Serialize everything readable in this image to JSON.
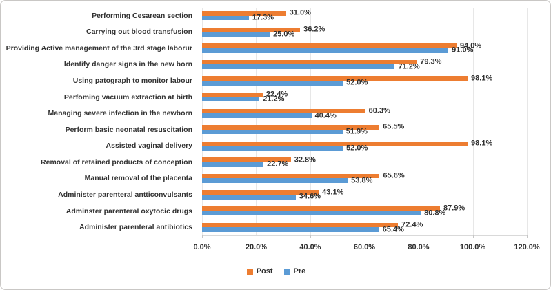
{
  "chart_data": {
    "type": "bar",
    "orientation": "horizontal",
    "title": "",
    "categories": [
      "Performing Cesarean section",
      "Carrying out blood transfusion",
      "Providing Active management of the 3rd stage laborur",
      "Identify danger signs in the new born",
      "Using patograph to monitor labour",
      "Perfoming vacuum extraction at birth",
      "Managing severe infection in the newborn",
      "Perform basic neonatal resuscitation",
      "Assisted vaginal delivery",
      "Removal of retained products of conception",
      "Manual removal of the placenta",
      "Administer parenteral antticonvulsants",
      "Adminster parenteral oxytocic drugs",
      "Administer parenteral antibiotics"
    ],
    "series": [
      {
        "name": "Post",
        "color": "#ED7D31",
        "values": [
          31.0,
          36.2,
          94.0,
          79.3,
          98.1,
          22.4,
          60.3,
          65.5,
          98.1,
          32.8,
          65.6,
          43.1,
          87.9,
          72.4
        ],
        "labels": [
          "31.0%",
          "36.2%",
          "94.0%",
          "79.3%",
          "98.1%",
          "22.4%",
          "60.3%",
          "65.5%",
          "98.1%",
          "32.8%",
          "65.6%",
          "43.1%",
          "87.9%",
          "72.4%"
        ]
      },
      {
        "name": "Pre",
        "color": "#5B9BD5",
        "values": [
          17.3,
          25.0,
          91.0,
          71.2,
          52.0,
          21.2,
          40.4,
          51.9,
          52.0,
          22.7,
          53.8,
          34.6,
          80.8,
          65.4
        ],
        "labels": [
          "17.3%",
          "25.0%",
          "91.0%",
          "71.2%",
          "52.0%",
          "21.2%",
          "40.4%",
          "51.9%",
          "52.0%",
          "22.7%",
          "53.8%",
          "34.6%",
          "80.8%",
          "65.4%"
        ]
      }
    ],
    "xlim": [
      0,
      120
    ],
    "x_ticks": [
      "0.0%",
      "20.0%",
      "40.0%",
      "60.0%",
      "80.0%",
      "100.0%",
      "120.0%"
    ],
    "grid": true,
    "legend_position": "bottom-center",
    "legend": [
      {
        "label": "Post",
        "color": "#ED7D31"
      },
      {
        "label": "Pre",
        "color": "#5B9BD5"
      }
    ]
  },
  "colors": {
    "post": "#ED7D31",
    "pre": "#5B9BD5",
    "gridline": "#e7e7e7",
    "text": "#2f2f2f",
    "border": "#c9c7c5"
  }
}
